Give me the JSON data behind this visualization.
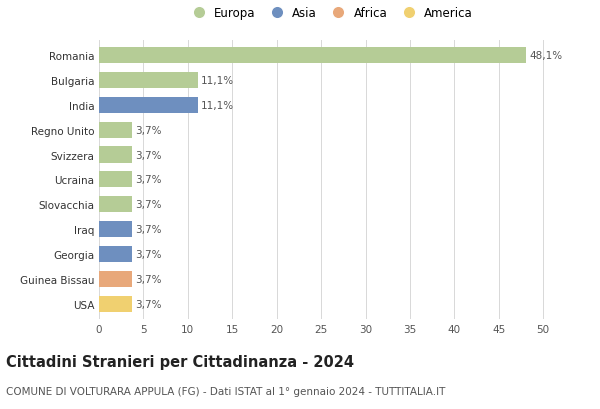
{
  "countries": [
    "Romania",
    "Bulgaria",
    "India",
    "Regno Unito",
    "Svizzera",
    "Ucraina",
    "Slovacchia",
    "Iraq",
    "Georgia",
    "Guinea Bissau",
    "USA"
  ],
  "values": [
    48.1,
    11.1,
    11.1,
    3.7,
    3.7,
    3.7,
    3.7,
    3.7,
    3.7,
    3.7,
    3.7
  ],
  "labels": [
    "48,1%",
    "11,1%",
    "11,1%",
    "3,7%",
    "3,7%",
    "3,7%",
    "3,7%",
    "3,7%",
    "3,7%",
    "3,7%",
    "3,7%"
  ],
  "continents": [
    "Europa",
    "Europa",
    "Asia",
    "Europa",
    "Europa",
    "Europa",
    "Europa",
    "Asia",
    "Asia",
    "Africa",
    "America"
  ],
  "colors": {
    "Europa": "#b5cc96",
    "Asia": "#6e8fbf",
    "Africa": "#e8a87a",
    "America": "#f0d070"
  },
  "legend_order": [
    "Europa",
    "Asia",
    "Africa",
    "America"
  ],
  "xlim": [
    0,
    52
  ],
  "xticks": [
    0,
    5,
    10,
    15,
    20,
    25,
    30,
    35,
    40,
    45,
    50
  ],
  "title": "Cittadini Stranieri per Cittadinanza - 2024",
  "subtitle": "COMUNE DI VOLTURARA APPULA (FG) - Dati ISTAT al 1° gennaio 2024 - TUTTITALIA.IT",
  "bg_color": "#ffffff",
  "grid_color": "#d8d8d8",
  "bar_height": 0.65,
  "title_fontsize": 10.5,
  "subtitle_fontsize": 7.5,
  "label_fontsize": 7.5,
  "tick_fontsize": 7.5,
  "legend_fontsize": 8.5
}
